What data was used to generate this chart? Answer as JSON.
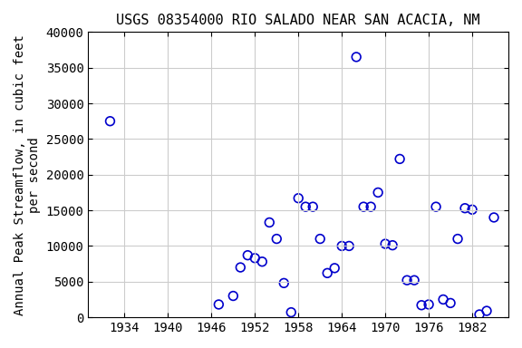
{
  "title": "USGS 08354000 RIO SALADO NEAR SAN ACACIA, NM",
  "ylabel": "Annual Peak Streamflow, in cubic feet\nper second",
  "years": [
    1932,
    1947,
    1949,
    1950,
    1951,
    1952,
    1953,
    1954,
    1955,
    1956,
    1957,
    1958,
    1959,
    1960,
    1961,
    1962,
    1963,
    1964,
    1965,
    1966,
    1967,
    1968,
    1969,
    1970,
    1971,
    1972,
    1973,
    1974,
    1975,
    1976,
    1977,
    1978,
    1979,
    1980,
    1981,
    1982,
    1983,
    1984,
    1985
  ],
  "values": [
    27500,
    1800,
    3000,
    7000,
    8700,
    8300,
    7800,
    13300,
    11000,
    4800,
    700,
    16700,
    15500,
    15500,
    11000,
    6200,
    6900,
    10000,
    10000,
    36500,
    15500,
    15500,
    17500,
    10300,
    10100,
    22200,
    5200,
    5200,
    1700,
    1800,
    15500,
    2500,
    2000,
    11000,
    15300,
    15100,
    400,
    900,
    14000
  ],
  "xlim": [
    1929,
    1987
  ],
  "ylim": [
    0,
    40000
  ],
  "xticks": [
    1934,
    1940,
    1946,
    1952,
    1958,
    1964,
    1970,
    1976,
    1982
  ],
  "yticks": [
    0,
    5000,
    10000,
    15000,
    20000,
    25000,
    30000,
    35000,
    40000
  ],
  "marker_color": "#0000cc",
  "marker_size": 7,
  "grid_color": "#cccccc",
  "bg_color": "#ffffff",
  "title_fontsize": 11,
  "label_fontsize": 10,
  "tick_fontsize": 10,
  "font_family": "monospace"
}
